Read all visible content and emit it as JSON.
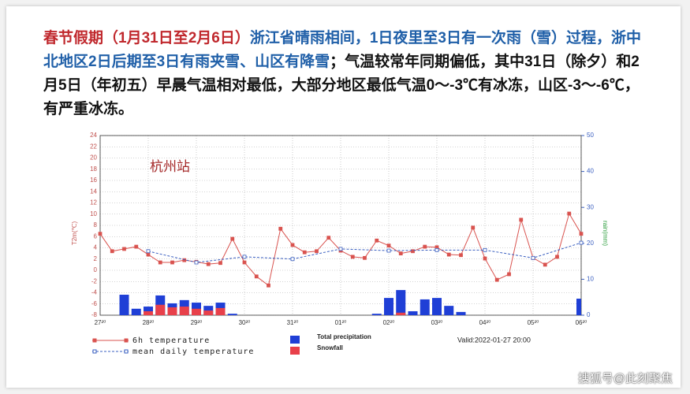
{
  "text": {
    "lead": "春节假期（1月31日至2月6日）",
    "middle": "浙江省晴雨相间，1日夜里至3日有一次雨（雪）过程，浙中北地区2日后期至3日有雨夹雪、山区有降雪",
    "tail": "；气温较常年同期偏低，其中31日（除夕）和2月5日（年初五）早晨气温相对最低，大部分地区最低气温0～-3℃有冰冻，山区-3～-6℃，有严重冰冻。",
    "watermark": "搜狐号@此刻聚焦"
  },
  "chart_data": {
    "type": "meteogram",
    "annotation": "杭州站",
    "valid": "Valid:2022-01-27 20:00",
    "ylabel": "T2m(℃)",
    "y2label": "rain(mm)",
    "x": [
      0,
      0.25,
      0.5,
      0.75,
      1,
      1.25,
      1.5,
      1.75,
      2,
      2.25,
      2.5,
      2.75,
      3,
      3.25,
      3.5,
      3.75,
      4,
      4.25,
      4.5,
      4.75,
      5,
      5.25,
      5.5,
      5.75,
      6,
      6.25,
      6.5,
      6.75,
      7,
      7.25,
      7.5,
      7.75,
      8,
      8.25,
      8.5,
      8.75,
      9,
      9.25,
      9.5,
      9.75,
      10
    ],
    "xlim": [
      0,
      10
    ],
    "xticks": [
      {
        "value": 0,
        "label": "27²⁰"
      },
      {
        "value": 1,
        "label": "28²⁰"
      },
      {
        "value": 2,
        "label": "29²⁰"
      },
      {
        "value": 3,
        "label": "30²⁰"
      },
      {
        "value": 4,
        "label": "31²⁰"
      },
      {
        "value": 5,
        "label": "01²⁰"
      },
      {
        "value": 6,
        "label": "02²⁰"
      },
      {
        "value": 7,
        "label": "03²⁰"
      },
      {
        "value": 8,
        "label": "04²⁰"
      },
      {
        "value": 9,
        "label": "05²⁰"
      },
      {
        "value": 10,
        "label": "06²⁰"
      }
    ],
    "ylim": [
      -8,
      24
    ],
    "yticks": [
      -8,
      -6,
      -4,
      -2,
      0,
      2,
      4,
      6,
      8,
      10,
      12,
      14,
      16,
      18,
      20,
      22,
      24
    ],
    "y2lim": [
      0,
      50
    ],
    "y2ticks": [
      0,
      10,
      20,
      30,
      40,
      50
    ],
    "grid": true,
    "series": [
      {
        "name": "6h temperature",
        "kind": "line",
        "color": "#d9534f",
        "values": [
          6.5,
          3.4,
          3.8,
          4.2,
          2.8,
          1.4,
          1.4,
          1.8,
          1.5,
          1.1,
          1.3,
          5.6,
          1.4,
          -1.1,
          -2.7,
          7.4,
          4.5,
          3.2,
          3.4,
          5.8,
          3.5,
          2.4,
          2.2,
          5.3,
          4.4,
          3.0,
          3.4,
          4.2,
          4.1,
          2.8,
          2.7,
          7.6,
          2.1,
          -1.7,
          -0.7,
          9.0,
          2.2,
          1.0,
          2.4,
          10.1,
          6.5
        ]
      },
      {
        "name": "mean daily temperature",
        "kind": "dashed",
        "color": "#3a5fc0",
        "x": [
          1,
          2,
          3,
          4,
          5,
          6,
          7,
          8,
          9,
          10
        ],
        "values": [
          3.4,
          1.4,
          2.4,
          2.0,
          3.8,
          3.5,
          3.6,
          3.6,
          2.2,
          4.9
        ]
      },
      {
        "name": "Total precipitation",
        "kind": "bar",
        "axis": "y2",
        "color": "#1f3fd6",
        "values": [
          null,
          null,
          5.7,
          1.8,
          2.4,
          5.5,
          3.3,
          4.2,
          3.5,
          2.6,
          3.5,
          0.4,
          null,
          null,
          null,
          null,
          null,
          null,
          null,
          null,
          null,
          null,
          null,
          0.4,
          4.8,
          7.0,
          1.1,
          4.4,
          4.8,
          2.6,
          0.9,
          null,
          null,
          null,
          null,
          null,
          null,
          null,
          null,
          null,
          4.6
        ]
      },
      {
        "name": "Snowfall",
        "kind": "bar",
        "axis": "y2",
        "color": "#e8404a",
        "values": [
          null,
          null,
          null,
          null,
          1.1,
          2.9,
          2.2,
          2.4,
          1.8,
          1.3,
          2.0,
          null,
          null,
          null,
          null,
          null,
          null,
          null,
          null,
          null,
          null,
          null,
          null,
          null,
          null,
          0.7,
          null,
          null,
          null,
          null,
          null,
          null,
          null,
          null,
          null,
          null,
          null,
          null,
          null,
          null,
          null
        ]
      }
    ]
  }
}
